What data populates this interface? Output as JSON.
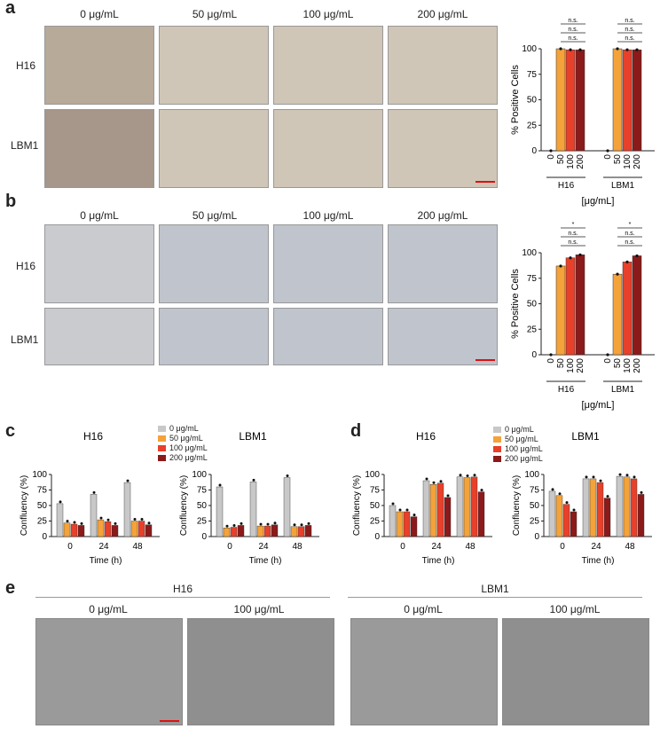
{
  "panels": {
    "a": "a",
    "b": "b",
    "c": "c",
    "d": "d",
    "e": "e"
  },
  "conc_labels": [
    "0 μg/mL",
    "50 μg/mL",
    "100 μg/mL",
    "200 μg/mL"
  ],
  "cell_lines": [
    "H16",
    "LBM1"
  ],
  "bar_ylabel": "% Positive Cells",
  "unit_label": "[μg/mL]",
  "ns": "n.s.",
  "star": "*",
  "conf_ylabel": "Confluency (%)",
  "time_label": "Time (h)",
  "e_labels": {
    "h16": "H16",
    "lbm1": "LBM1",
    "c0": "0 μg/mL",
    "c100": "100 μg/mL"
  },
  "colors": {
    "c0": "#c8c8c8",
    "c50": "#f4a23a",
    "c100": "#e8402a",
    "c200": "#8b1a1a"
  },
  "chart_data": [
    {
      "type": "bar",
      "panel": "a",
      "groups": [
        "H16",
        "LBM1"
      ],
      "categories": [
        "0",
        "50",
        "100",
        "200"
      ],
      "ylabel": "% Positive Cells",
      "xlabel": "[μg/mL]",
      "ylim": [
        0,
        100
      ],
      "yticks": [
        0,
        25,
        50,
        75,
        100
      ],
      "values": {
        "H16": [
          0,
          100,
          99,
          99
        ],
        "LBM1": [
          0,
          100,
          99,
          99
        ]
      }
    },
    {
      "type": "bar",
      "panel": "b",
      "groups": [
        "H16",
        "LBM1"
      ],
      "categories": [
        "0",
        "50",
        "100",
        "200"
      ],
      "ylabel": "% Positive Cells",
      "xlabel": "[μg/mL]",
      "ylim": [
        0,
        100
      ],
      "yticks": [
        0,
        25,
        50,
        75,
        100
      ],
      "values": {
        "H16": [
          0,
          87,
          95,
          98
        ],
        "LBM1": [
          0,
          79,
          91,
          97
        ]
      }
    },
    {
      "type": "bar",
      "panel": "c",
      "title": "H16",
      "categories": [
        "0",
        "24",
        "48"
      ],
      "ylabel": "Confluency (%)",
      "xlabel": "Time (h)",
      "ylim": [
        0,
        100
      ],
      "yticks": [
        0,
        25,
        50,
        75,
        100
      ],
      "series": [
        {
          "name": "0 μg/mL",
          "values": [
            53,
            68,
            87
          ]
        },
        {
          "name": "50 μg/mL",
          "values": [
            22,
            27,
            25
          ]
        },
        {
          "name": "100 μg/mL",
          "values": [
            20,
            24,
            25
          ]
        },
        {
          "name": "200 μg/mL",
          "values": [
            18,
            18,
            19
          ]
        }
      ]
    },
    {
      "type": "bar",
      "panel": "c",
      "title": "LBM1",
      "categories": [
        "0",
        "24",
        "48"
      ],
      "ylabel": "Confluency (%)",
      "xlabel": "Time (h)",
      "ylim": [
        0,
        100
      ],
      "yticks": [
        0,
        25,
        50,
        75,
        100
      ],
      "series": [
        {
          "name": "0 μg/mL",
          "values": [
            80,
            88,
            95
          ]
        },
        {
          "name": "50 μg/mL",
          "values": [
            14,
            17,
            16
          ]
        },
        {
          "name": "100 μg/mL",
          "values": [
            15,
            17,
            16
          ]
        },
        {
          "name": "200 μg/mL",
          "values": [
            18,
            19,
            18
          ]
        }
      ]
    },
    {
      "type": "bar",
      "panel": "d",
      "title": "H16",
      "categories": [
        "0",
        "24",
        "48"
      ],
      "ylabel": "Confluency (%)",
      "xlabel": "Time (h)",
      "ylim": [
        0,
        100
      ],
      "yticks": [
        0,
        25,
        50,
        75,
        100
      ],
      "series": [
        {
          "name": "0 μg/mL",
          "values": [
            50,
            90,
            96
          ]
        },
        {
          "name": "50 μg/mL",
          "values": [
            40,
            84,
            95
          ]
        },
        {
          "name": "100 μg/mL",
          "values": [
            40,
            86,
            96
          ]
        },
        {
          "name": "200 μg/mL",
          "values": [
            32,
            63,
            72
          ]
        }
      ]
    },
    {
      "type": "bar",
      "panel": "d",
      "title": "LBM1",
      "categories": [
        "0",
        "24",
        "48"
      ],
      "ylabel": "Confluency (%)",
      "xlabel": "Time (h)",
      "ylim": [
        0,
        100
      ],
      "yticks": [
        0,
        25,
        50,
        75,
        100
      ],
      "series": [
        {
          "name": "0 μg/mL",
          "values": [
            73,
            93,
            97
          ]
        },
        {
          "name": "50 μg/mL",
          "values": [
            66,
            93,
            96
          ]
        },
        {
          "name": "100 μg/mL",
          "values": [
            52,
            87,
            93
          ]
        },
        {
          "name": "200 μg/mL",
          "values": [
            40,
            62,
            68
          ]
        }
      ]
    }
  ]
}
